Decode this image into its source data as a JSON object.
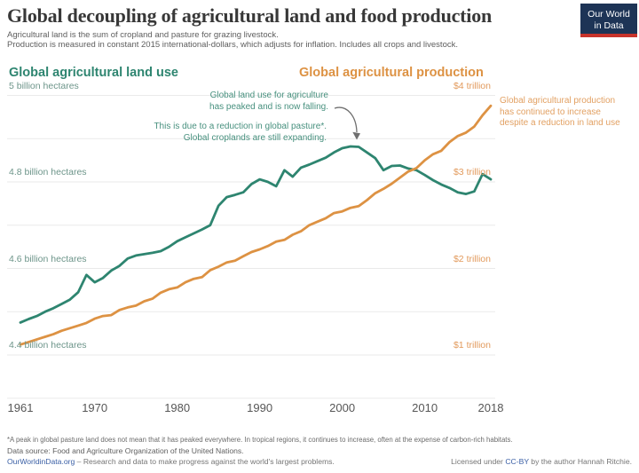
{
  "header": {
    "title": "Global decoupling of agricultural land and food production",
    "subtitle_line1": "Agricultural land is the sum of cropland and pasture for grazing livestock.",
    "subtitle_line2": "Production is measured in constant 2015 international-dollars, which adjusts for inflation. Includes all crops and livestock.",
    "logo": {
      "line1": "Our World",
      "line2": "in Data",
      "bg_color": "#1d3456",
      "bar_color": "#c7332b"
    }
  },
  "chart": {
    "left_series_title": "Global agricultural land use",
    "right_series_title": "Global agricultural production",
    "annotations": {
      "left_primary": {
        "line1": "Global land use for agriculture",
        "line2": "has peaked and is now falling."
      },
      "left_secondary": {
        "line1": "This is due to a reduction in global pasture*.",
        "line2": "Global croplands are still expanding."
      },
      "right_primary": {
        "line1": "Global agricultural production",
        "line2": "has continued to increase",
        "line3": "despite a reduction in land use"
      }
    }
  },
  "chart_data": {
    "type": "line",
    "title": "Global decoupling of agricultural land and food production",
    "x": [
      1961,
      1962,
      1963,
      1964,
      1965,
      1966,
      1967,
      1968,
      1969,
      1970,
      1971,
      1972,
      1973,
      1974,
      1975,
      1976,
      1977,
      1978,
      1979,
      1980,
      1981,
      1982,
      1983,
      1984,
      1985,
      1986,
      1987,
      1988,
      1989,
      1990,
      1991,
      1992,
      1993,
      1994,
      1995,
      1996,
      1997,
      1998,
      1999,
      2000,
      2001,
      2002,
      2003,
      2004,
      2005,
      2006,
      2007,
      2008,
      2009,
      2010,
      2011,
      2012,
      2013,
      2014,
      2015,
      2016,
      2017,
      2018
    ],
    "x_ticks": [
      1961,
      1970,
      1980,
      1990,
      2000,
      2010,
      2018
    ],
    "grid": true,
    "legend_position": "headers-above-chart",
    "series": [
      {
        "name": "Global agricultural land use",
        "axis": "left",
        "unit": "billion hectares",
        "color": "#2e8570",
        "values": [
          4.475,
          4.483,
          4.49,
          4.5,
          4.508,
          4.518,
          4.528,
          4.545,
          4.585,
          4.568,
          4.578,
          4.595,
          4.606,
          4.623,
          4.63,
          4.633,
          4.636,
          4.64,
          4.65,
          4.663,
          4.672,
          4.681,
          4.69,
          4.7,
          4.745,
          4.765,
          4.77,
          4.776,
          4.795,
          4.806,
          4.8,
          4.79,
          4.827,
          4.812,
          4.833,
          4.84,
          4.848,
          4.856,
          4.868,
          4.878,
          4.882,
          4.881,
          4.868,
          4.855,
          4.827,
          4.837,
          4.838,
          4.831,
          4.827,
          4.816,
          4.804,
          4.794,
          4.786,
          4.776,
          4.772,
          4.778,
          4.818,
          4.806
        ]
      },
      {
        "name": "Global agricultural production",
        "axis": "right",
        "unit": "trillion constant 2015 international-dollars",
        "color": "#dd9243",
        "values": [
          1.12,
          1.15,
          1.18,
          1.21,
          1.24,
          1.28,
          1.31,
          1.34,
          1.37,
          1.42,
          1.45,
          1.46,
          1.52,
          1.55,
          1.57,
          1.62,
          1.65,
          1.72,
          1.76,
          1.78,
          1.84,
          1.88,
          1.9,
          1.98,
          2.02,
          2.07,
          2.09,
          2.14,
          2.19,
          2.22,
          2.26,
          2.31,
          2.33,
          2.39,
          2.43,
          2.5,
          2.54,
          2.58,
          2.64,
          2.66,
          2.7,
          2.72,
          2.79,
          2.87,
          2.92,
          2.98,
          3.05,
          3.12,
          3.16,
          3.25,
          3.32,
          3.36,
          3.46,
          3.53,
          3.57,
          3.64,
          3.77,
          3.88
        ]
      }
    ],
    "axes": {
      "left": {
        "min": 4.3,
        "max": 5.0,
        "label_color": "#6d958a",
        "ticks": [
          {
            "label": "5 billion hectares",
            "value": 5.0
          },
          {
            "label": "4.8 billion hectares",
            "value": 4.8
          },
          {
            "label": "4.6 billion hectares",
            "value": 4.6
          },
          {
            "label": "4.4 billion hectares",
            "value": 4.4
          }
        ]
      },
      "right": {
        "min": 0.5,
        "max": 4.0,
        "label_color": "#e29a5c",
        "ticks": [
          {
            "label": "$4 trillion",
            "value": 4.0
          },
          {
            "label": "$3 trillion",
            "value": 3.0
          },
          {
            "label": "$2 trillion",
            "value": 2.0
          },
          {
            "label": "$1 trillion",
            "value": 1.0
          }
        ]
      }
    }
  },
  "footer": {
    "footnote": "*A peak in global pasture land does not mean that it has peaked everywhere. In tropical regions, it continues to increase, often at the expense of carbon-rich habitats.",
    "datasource": "Data source: Food and Agriculture Organization of the United Nations.",
    "owid_link": "OurWorldinData.org",
    "owid_tagline": " – Research and data to make progress against the world's largest problems.",
    "license_prefix": "Licensed under ",
    "license_link": "CC-BY",
    "license_suffix": " by the author Hannah Ritchie.",
    "link_color": "#3a5fa5"
  }
}
